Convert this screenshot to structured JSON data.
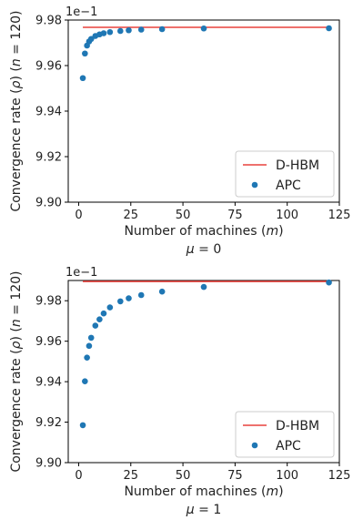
{
  "chart_data": [
    {
      "type": "scatter",
      "ylabel": "Convergence rate (ρ) (n = 120)",
      "xlabel": "Number of machines (m)",
      "subtitle": "μ = 0",
      "y_offset_label": "1e−1",
      "xlim": [
        -5,
        125
      ],
      "ylim": [
        9.9,
        9.98
      ],
      "xticks": [
        0,
        25,
        50,
        75,
        100,
        125
      ],
      "yticks": [
        9.9,
        9.92,
        9.94,
        9.96,
        9.98
      ],
      "ytick_labels": [
        "9.90",
        "9.92",
        "9.94",
        "9.96",
        "9.98"
      ],
      "legend_position": "lower-right",
      "series": [
        {
          "name": "D-HBM",
          "kind": "line",
          "color": "#e8423d",
          "x": [
            2,
            120
          ],
          "y": [
            9.9768,
            9.9768
          ]
        },
        {
          "name": "APC",
          "kind": "scatter",
          "color": "#1f77b4",
          "x": [
            2,
            3,
            4,
            5,
            6,
            8,
            10,
            12,
            15,
            20,
            24,
            30,
            40,
            60,
            120
          ],
          "y": [
            9.9545,
            9.9653,
            9.9688,
            9.9706,
            9.9717,
            9.973,
            9.9737,
            9.9742,
            9.9747,
            9.9752,
            9.9755,
            9.9758,
            9.976,
            9.9763,
            9.9764
          ]
        }
      ]
    },
    {
      "type": "scatter",
      "ylabel": "Convergence rate (ρ) (n = 120)",
      "xlabel": "Number of machines (m)",
      "subtitle": "μ = 1",
      "y_offset_label": "1e−1",
      "xlim": [
        -5,
        125
      ],
      "ylim": [
        9.9,
        9.99
      ],
      "xticks": [
        0,
        25,
        50,
        75,
        100,
        125
      ],
      "yticks": [
        9.9,
        9.92,
        9.94,
        9.96,
        9.98
      ],
      "ytick_labels": [
        "9.90",
        "9.92",
        "9.94",
        "9.96",
        "9.98"
      ],
      "legend_position": "lower-right",
      "series": [
        {
          "name": "D-HBM",
          "kind": "line",
          "color": "#e8423d",
          "x": [
            2,
            120
          ],
          "y": [
            9.9895,
            9.9895
          ]
        },
        {
          "name": "APC",
          "kind": "scatter",
          "color": "#1f77b4",
          "x": [
            2,
            3,
            4,
            5,
            6,
            8,
            10,
            12,
            15,
            20,
            24,
            30,
            40,
            60,
            120
          ],
          "y": [
            9.9185,
            9.9402,
            9.9519,
            9.9577,
            9.9617,
            9.9677,
            9.9708,
            9.9737,
            9.9767,
            9.9797,
            9.9812,
            9.9828,
            9.9845,
            9.9868,
            9.989
          ]
        }
      ]
    }
  ]
}
